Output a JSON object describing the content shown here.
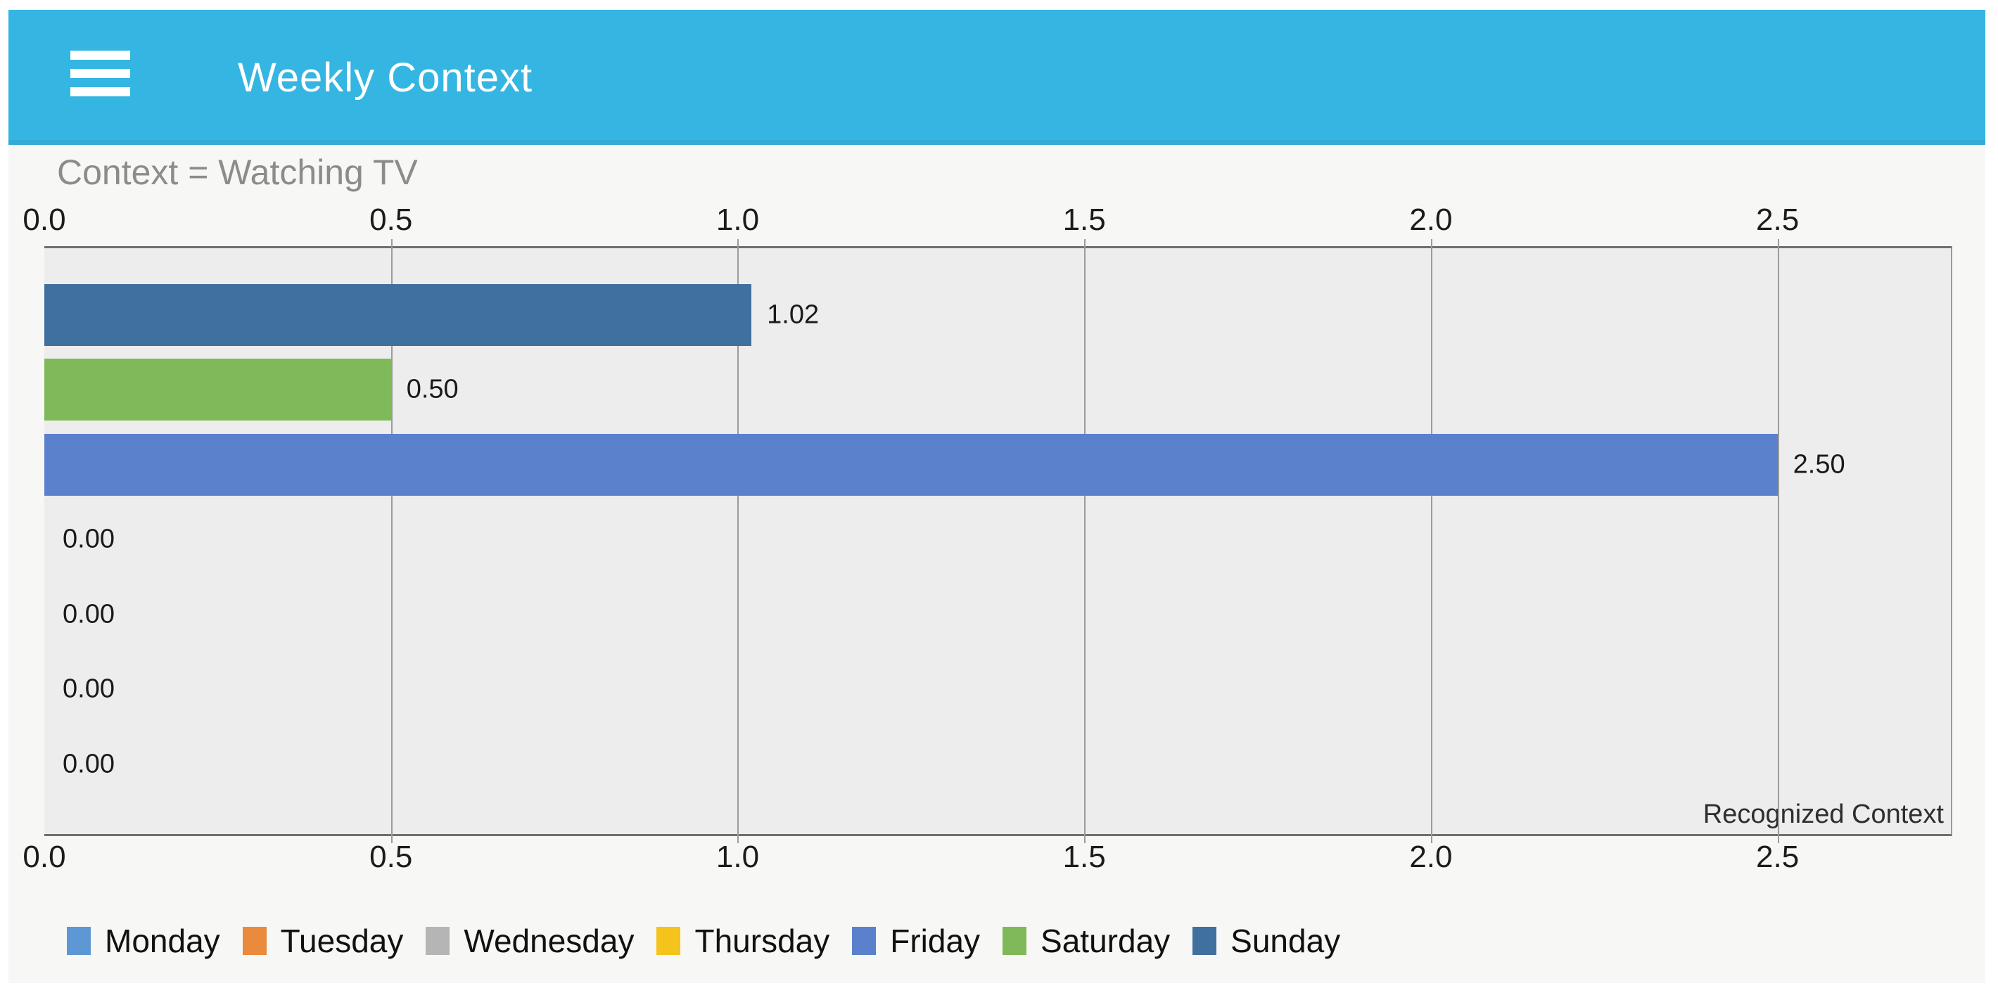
{
  "app_bar": {
    "title": "Weekly Context",
    "background_color": "#35b5e2",
    "menu_icon": "hamburger-menu"
  },
  "chart_data": {
    "type": "bar",
    "orientation": "horizontal",
    "title": "Weekly Context",
    "subtitle": "Context = Watching TV",
    "categories": [
      "Sunday",
      "Saturday",
      "Friday",
      "Thursday",
      "Wednesday",
      "Tuesday",
      "Monday"
    ],
    "values": [
      1.02,
      0.5,
      2.5,
      0,
      0,
      0,
      0
    ],
    "value_labels": [
      "1.02",
      "0.50",
      "2.50",
      "0.00",
      "0.00",
      "0.00",
      "0.00"
    ],
    "bar_colors": [
      "#40719e",
      "#7fb95a",
      "#5b81cd",
      "#f4c31c",
      "#b5b5b5",
      "#e98a3c",
      "#5d97d4"
    ],
    "x_tick_values": [
      0,
      0.5,
      1,
      1.5,
      2,
      2.5
    ],
    "x_tick_labels": [
      "0.0",
      "0.5",
      "1.0",
      "1.5",
      "2.0",
      "2.5"
    ],
    "xlim": [
      0,
      2.75
    ],
    "grid": true,
    "axes_shown": [
      "top",
      "bottom"
    ],
    "annotation": "Recognized Context",
    "plot_background": "#ededed",
    "legend_position": "bottom-left",
    "legend": [
      {
        "label": "Monday",
        "color": "#5d97d4"
      },
      {
        "label": "Tuesday",
        "color": "#e98a3c"
      },
      {
        "label": "Wednesday",
        "color": "#b5b5b5"
      },
      {
        "label": "Thursday",
        "color": "#f4c31c"
      },
      {
        "label": "Friday",
        "color": "#5b81cd"
      },
      {
        "label": "Saturday",
        "color": "#7fb95a"
      },
      {
        "label": "Sunday",
        "color": "#40719e"
      }
    ]
  }
}
